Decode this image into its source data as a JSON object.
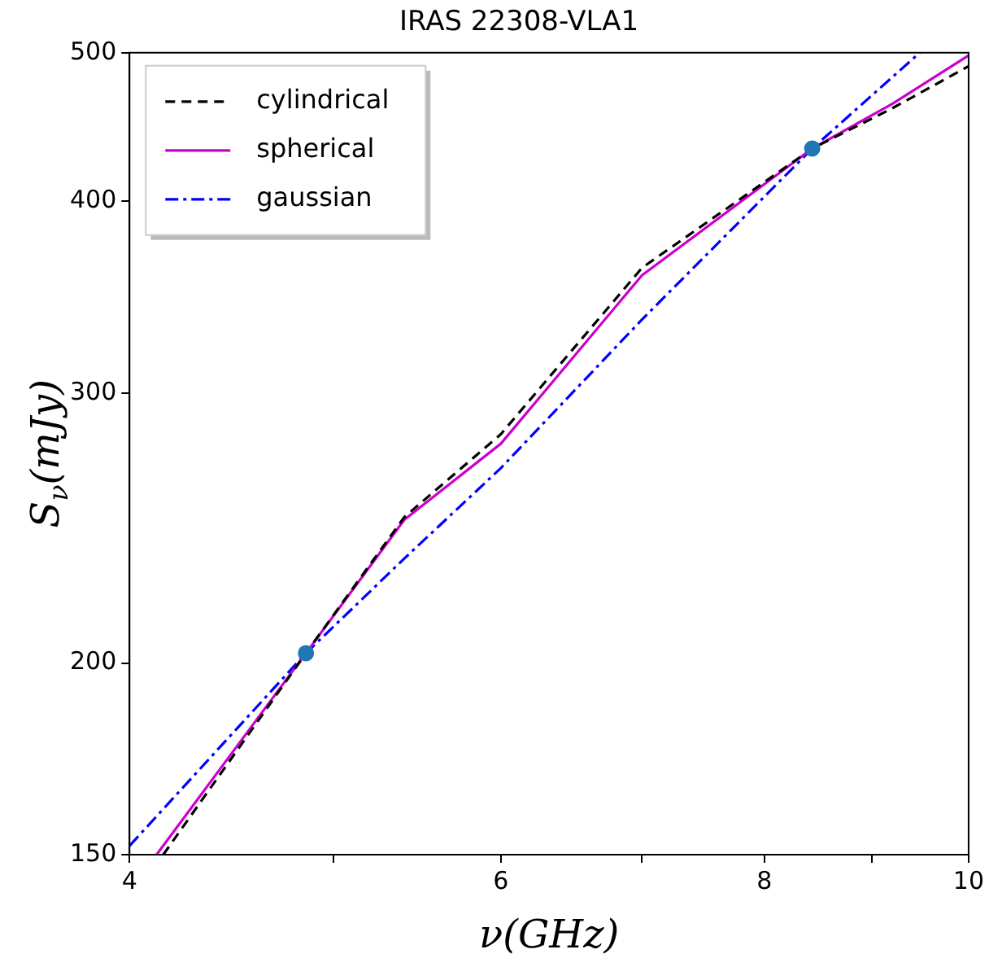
{
  "chart_data": {
    "type": "line",
    "title": "IRAS 22308-VLA1",
    "xlabel": "ν(GHz)",
    "ylabel": "S$_{ν}$(mJy)",
    "log": "xy",
    "xlim": [
      4,
      10
    ],
    "xticks": [
      4,
      {
        "value": 5,
        "label": null
      },
      6,
      {
        "value": 7,
        "label": null
      },
      8,
      {
        "value": 9,
        "label": null
      },
      10
    ],
    "ylim": [
      150,
      500
    ],
    "yticks": [
      150,
      200,
      300,
      400,
      500
    ],
    "grid": false,
    "legend": "top left",
    "series": [
      {
        "name": "cylindrical",
        "type": "line",
        "color": "#000000",
        "line_style": "dashed",
        "x": [
          4.15,
          4.85,
          5.4,
          6,
          7,
          8.43,
          9.2,
          10
        ],
        "values": [
          150,
          203,
          249,
          282,
          362,
          433,
          460,
          490
        ]
      },
      {
        "name": "spherical",
        "type": "line",
        "color": "#cc00cc",
        "line_style": "solid",
        "x": [
          4.12,
          4.85,
          5.4,
          6,
          7,
          8.43,
          9.2,
          10
        ],
        "values": [
          150,
          203,
          248,
          278,
          358,
          433,
          463,
          498
        ]
      },
      {
        "name": "gaussian",
        "type": "line",
        "color": "#0000ff",
        "line_style": "dashdot",
        "x": [
          4,
          4.85,
          5.4,
          6,
          7,
          8.43,
          9.48
        ],
        "values": [
          152,
          203,
          234,
          268,
          335,
          433,
          500
        ]
      },
      {
        "type": "scatter",
        "color": "#1f77b4",
        "marker": "circle",
        "x": [
          4.85,
          8.43
        ],
        "values": [
          203,
          433
        ]
      }
    ]
  }
}
